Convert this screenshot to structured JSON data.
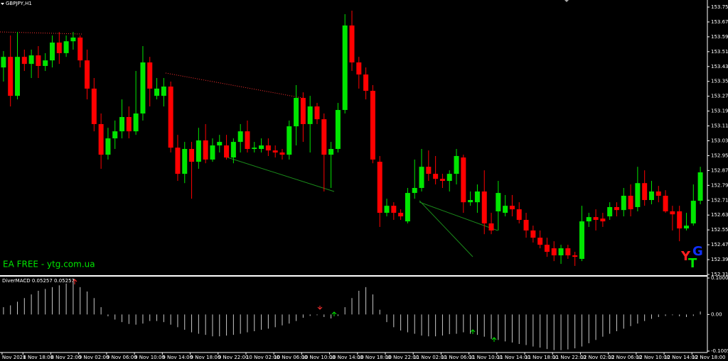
{
  "chart_data": [
    {
      "type": "candlestick",
      "title": "GBPJPY,H1",
      "annotations": {
        "watermark": "EA FREE - ytg.com.ua",
        "logo": [
          "Y",
          "T",
          "G"
        ]
      },
      "up_color": "#00e600",
      "down_color": "#ff0000",
      "open": [
        153.43,
        153.487,
        153.277,
        153.487,
        153.449,
        153.495,
        153.438,
        153.468,
        153.564,
        153.507,
        153.571,
        153.591,
        153.468,
        153.316,
        153.125,
        152.96,
        153.048,
        153.086,
        153.163,
        153.086,
        153.182,
        153.457,
        153.277,
        153.277,
        153.327,
        152.998,
        152.857,
        152.991,
        152.922,
        153.037,
        152.934,
        153.01,
        153.01,
        152.945,
        153.029,
        153.086,
        152.991,
        152.991,
        153.01,
        152.983,
        152.972,
        152.96,
        153.113,
        153.266,
        153.125,
        153.22,
        153.151,
        152.96,
        152.991,
        153.201,
        153.656,
        153.457,
        153.392,
        153.304,
        152.922,
        152.647,
        152.685,
        152.647,
        152.601,
        152.754,
        152.781,
        152.895,
        152.857,
        152.83,
        152.819,
        152.857,
        152.945,
        152.704,
        152.704,
        152.762,
        152.59,
        152.655,
        152.647,
        152.685,
        152.666,
        152.609,
        152.552,
        152.513,
        152.475,
        152.456,
        152.418,
        152.456,
        152.418,
        152.399,
        152.601,
        152.624,
        152.616,
        152.628,
        152.678,
        152.662,
        152.739,
        152.678,
        152.807,
        152.716,
        152.762,
        152.739,
        152.655,
        152.655,
        152.563,
        152.59,
        152.712
      ],
      "high": [
        153.518,
        153.602,
        153.621,
        153.526,
        153.526,
        153.545,
        153.507,
        153.602,
        153.621,
        153.602,
        153.621,
        153.602,
        153.526,
        153.373,
        153.182,
        153.105,
        153.144,
        153.258,
        153.22,
        153.411,
        153.545,
        153.487,
        153.373,
        153.373,
        153.354,
        153.067,
        153.029,
        153.029,
        153.105,
        153.125,
        153.048,
        153.067,
        153.067,
        153.048,
        153.125,
        153.144,
        153.029,
        153.048,
        153.048,
        153.01,
        152.991,
        153.144,
        153.335,
        153.296,
        153.277,
        153.239,
        153.182,
        153.029,
        153.239,
        153.717,
        153.736,
        153.487,
        153.43,
        153.335,
        152.953,
        152.723,
        152.704,
        152.666,
        152.781,
        152.934,
        152.991,
        152.983,
        152.953,
        152.857,
        152.876,
        152.991,
        152.96,
        152.762,
        152.8,
        152.876,
        152.647,
        152.819,
        152.743,
        152.743,
        152.704,
        152.647,
        152.578,
        152.552,
        152.513,
        152.494,
        152.475,
        152.475,
        152.437,
        152.685,
        152.647,
        152.666,
        152.647,
        152.704,
        152.704,
        152.781,
        152.8,
        152.895,
        152.876,
        152.819,
        152.792,
        152.769,
        152.685,
        152.685,
        152.647,
        152.8,
        152.895
      ],
      "low": [
        153.354,
        153.22,
        153.258,
        153.411,
        153.373,
        153.373,
        153.411,
        153.43,
        153.449,
        153.487,
        153.526,
        153.43,
        153.258,
        153.086,
        152.884,
        152.934,
        152.991,
        153.048,
        153.048,
        153.067,
        153.144,
        153.22,
        153.258,
        153.22,
        152.972,
        152.819,
        152.807,
        152.723,
        152.884,
        152.914,
        152.922,
        152.972,
        152.934,
        152.914,
        152.972,
        152.972,
        152.972,
        152.972,
        152.953,
        152.945,
        152.934,
        152.934,
        153.01,
        153.029,
        152.972,
        153.125,
        152.762,
        152.781,
        152.972,
        153.182,
        153.411,
        153.316,
        153.258,
        152.914,
        152.571,
        152.628,
        152.609,
        152.609,
        152.59,
        152.723,
        152.762,
        152.819,
        152.8,
        152.781,
        152.762,
        152.8,
        152.647,
        152.685,
        152.647,
        152.532,
        152.532,
        152.552,
        152.628,
        152.628,
        152.59,
        152.513,
        152.487,
        152.456,
        152.41,
        152.387,
        152.372,
        152.399,
        152.361,
        152.387,
        152.571,
        152.552,
        152.571,
        152.609,
        152.628,
        152.628,
        152.628,
        152.655,
        152.685,
        152.693,
        152.704,
        152.647,
        152.552,
        152.494,
        152.552,
        152.578,
        152.693
      ],
      "close": [
        153.487,
        153.277,
        153.487,
        153.449,
        153.495,
        153.438,
        153.468,
        153.564,
        153.507,
        153.571,
        153.591,
        153.468,
        153.316,
        153.125,
        152.96,
        153.048,
        153.086,
        153.163,
        153.086,
        153.182,
        153.457,
        153.316,
        153.316,
        153.327,
        152.998,
        152.857,
        152.991,
        152.922,
        153.037,
        152.934,
        153.01,
        153.029,
        152.945,
        153.029,
        153.086,
        152.991,
        152.998,
        153.01,
        152.983,
        152.972,
        152.96,
        153.113,
        153.266,
        153.125,
        153.22,
        153.151,
        152.96,
        152.991,
        153.201,
        153.656,
        153.457,
        153.392,
        153.304,
        152.934,
        152.647,
        152.685,
        152.647,
        152.628,
        152.754,
        152.781,
        152.895,
        152.857,
        152.83,
        152.819,
        152.857,
        152.953,
        152.704,
        152.716,
        152.762,
        152.59,
        152.552,
        152.754,
        152.685,
        152.666,
        152.609,
        152.552,
        152.513,
        152.475,
        152.437,
        152.418,
        152.456,
        152.418,
        152.41,
        152.601,
        152.624,
        152.609,
        152.601,
        152.678,
        152.662,
        152.739,
        152.666,
        152.807,
        152.716,
        152.762,
        152.739,
        152.655,
        152.639,
        152.563,
        152.578,
        152.712,
        152.865
      ],
      "ylim": [
        152.315,
        153.755
      ],
      "yticks": [
        153.755,
        153.675,
        153.595,
        153.515,
        153.435,
        153.355,
        153.275,
        153.195,
        153.115,
        153.035,
        152.955,
        152.875,
        152.795,
        152.715,
        152.635,
        152.555,
        152.475,
        152.395,
        152.315
      ]
    },
    {
      "type": "bar",
      "title": "DiverMACD 0.05257 0.05257",
      "color": "#c8c8c8",
      "categories": [
        "Nov 2021",
        null,
        null,
        "8 Nov 18:00",
        null,
        null,
        null,
        "8 Nov 22:00",
        null,
        null,
        null,
        "9 Nov 02:00",
        null,
        null,
        null,
        "9 Nov 06:00",
        null,
        null,
        null,
        "9 Nov 10:00",
        null,
        null,
        null,
        "9 Nov 14:00",
        null,
        null,
        null,
        "9 Nov 18:00",
        null,
        null,
        null,
        "9 Nov 22:00",
        null,
        null,
        null,
        "10 Nov 02:00",
        null,
        null,
        null,
        "10 Nov 06:00",
        null,
        null,
        null,
        "10 Nov 10:00",
        null,
        null,
        null,
        "10 Nov 14:00",
        null,
        null,
        null,
        "10 Nov 18:00",
        null,
        null,
        null,
        "10 Nov 22:00",
        null,
        null,
        null,
        "11 Nov 02:00",
        null,
        null,
        null,
        "11 Nov 06:00",
        null,
        null,
        null,
        "11 Nov 10:00",
        null,
        null,
        null,
        "11 Nov 14:00",
        null,
        null,
        null,
        "11 Nov 18:00",
        null,
        null,
        null,
        "11 Nov 22:00",
        null,
        null,
        null,
        "12 Nov 02:00",
        null,
        null,
        null,
        "12 Nov 06:00",
        null,
        null,
        null,
        "12 Nov 10:00",
        null,
        null,
        null,
        "12 Nov 14:00",
        null,
        null,
        null,
        "12 Nov 18:00",
        null
      ],
      "values": [
        0.02,
        0.025,
        0.035,
        0.045,
        0.055,
        0.065,
        0.07,
        0.075,
        0.08,
        0.085,
        0.09,
        0.075,
        0.063,
        0.045,
        0.02,
        -0.005,
        -0.014,
        -0.021,
        -0.026,
        -0.028,
        -0.025,
        -0.018,
        -0.018,
        -0.021,
        -0.028,
        -0.035,
        -0.042,
        -0.049,
        -0.053,
        -0.056,
        -0.06,
        -0.06,
        -0.058,
        -0.056,
        -0.053,
        -0.049,
        -0.046,
        -0.042,
        -0.039,
        -0.035,
        -0.03,
        -0.025,
        -0.018,
        -0.009,
        -0.004,
        -0.002,
        -0.007,
        -0.011,
        -0.004,
        0.02,
        0.045,
        0.065,
        0.075,
        0.055,
        0.013,
        -0.021,
        -0.035,
        -0.044,
        -0.049,
        -0.053,
        -0.058,
        -0.06,
        -0.06,
        -0.058,
        -0.054,
        -0.053,
        -0.049,
        -0.053,
        -0.056,
        -0.061,
        -0.067,
        -0.07,
        -0.074,
        -0.077,
        -0.081,
        -0.084,
        -0.088,
        -0.091,
        -0.095,
        -0.098,
        -0.098,
        -0.096,
        -0.093,
        -0.088,
        -0.079,
        -0.07,
        -0.061,
        -0.053,
        -0.046,
        -0.039,
        -0.032,
        -0.025,
        -0.018,
        -0.012,
        -0.007,
        -0.004,
        -0.002,
        -0.005,
        -0.007,
        -0.004,
        0.008
      ],
      "ylim": [
        -0.1005,
        0.100037
      ],
      "yticks": [
        0.100037,
        {
          "value": 0,
          "label": "0.00"
        },
        -0.1005
      ]
    }
  ]
}
